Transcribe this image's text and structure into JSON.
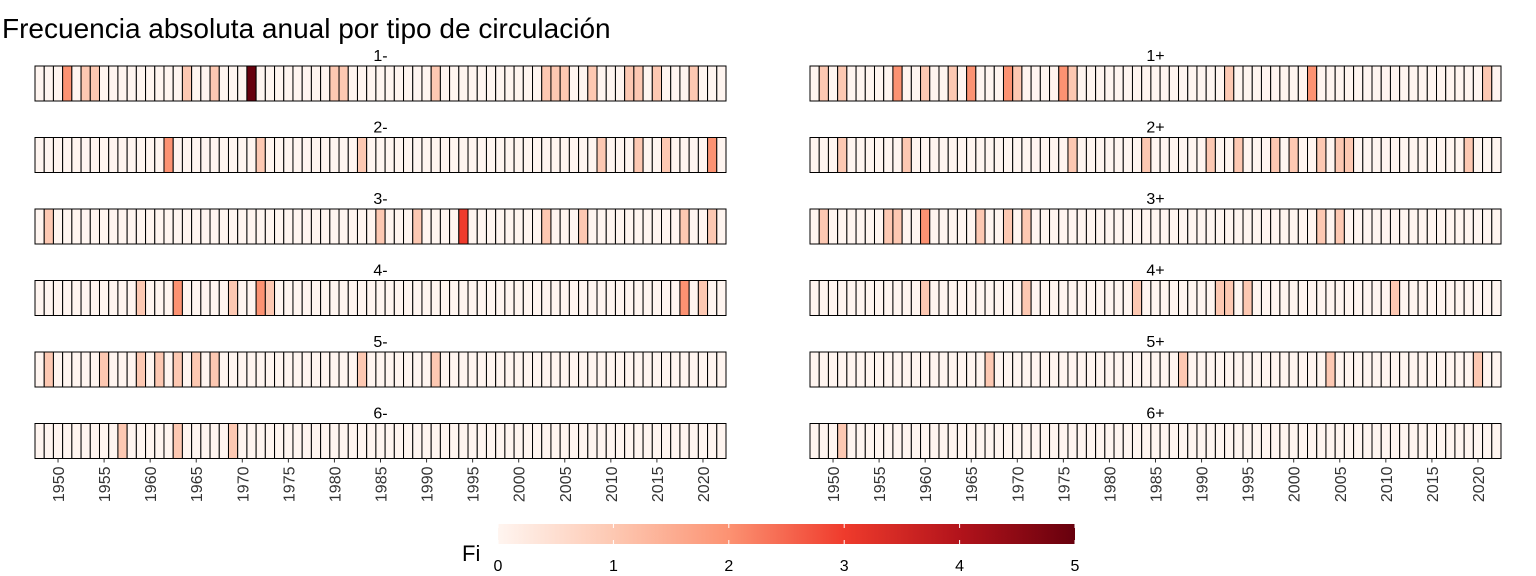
{
  "chart_data": {
    "type": "heatmap",
    "title": "Frecuencia absoluta anual por tipo de circulación",
    "years": [
      1948,
      1949,
      1950,
      1951,
      1952,
      1953,
      1954,
      1955,
      1956,
      1957,
      1958,
      1959,
      1960,
      1961,
      1962,
      1963,
      1964,
      1965,
      1966,
      1967,
      1968,
      1969,
      1970,
      1971,
      1972,
      1973,
      1974,
      1975,
      1976,
      1977,
      1978,
      1979,
      1980,
      1981,
      1982,
      1983,
      1984,
      1985,
      1986,
      1987,
      1988,
      1989,
      1990,
      1991,
      1992,
      1993,
      1994,
      1995,
      1996,
      1997,
      1998,
      1999,
      2000,
      2001,
      2002,
      2003,
      2004,
      2005,
      2006,
      2007,
      2008,
      2009,
      2010,
      2011,
      2012,
      2013,
      2014,
      2015,
      2016,
      2017,
      2018,
      2019,
      2020,
      2021,
      2022
    ],
    "x_ticks": [
      1950,
      1955,
      1960,
      1965,
      1970,
      1975,
      1980,
      1985,
      1990,
      1995,
      2000,
      2005,
      2010,
      2015,
      2020
    ],
    "panels": [
      {
        "label": "1-",
        "nonzero": {
          "1951": 2,
          "1953": 1,
          "1954": 1,
          "1964": 1,
          "1967": 1,
          "1971": 5,
          "1980": 1,
          "1981": 1,
          "1991": 1,
          "2003": 1,
          "2004": 1,
          "2005": 1,
          "2008": 1,
          "2012": 1,
          "2013": 1,
          "2015": 1,
          "2019": 1
        }
      },
      {
        "label": "1+",
        "nonzero": {
          "1949": 1,
          "1951": 1,
          "1957": 2,
          "1960": 1,
          "1963": 1,
          "1965": 2,
          "1969": 2,
          "1970": 1,
          "1975": 2,
          "1976": 1,
          "1993": 1,
          "2002": 2,
          "2021": 1
        }
      },
      {
        "label": "2-",
        "nonzero": {
          "1962": 2,
          "1972": 1,
          "1983": 1,
          "2009": 1,
          "2013": 1,
          "2016": 1,
          "2021": 2
        }
      },
      {
        "label": "2+",
        "nonzero": {
          "1951": 1,
          "1958": 1,
          "1976": 1,
          "1984": 1,
          "1991": 1,
          "1994": 1,
          "1998": 1,
          "2000": 1,
          "2003": 1,
          "2005": 1,
          "2006": 1,
          "2019": 1
        }
      },
      {
        "label": "3-",
        "nonzero": {
          "1949": 1,
          "1985": 1,
          "1989": 1,
          "1994": 3,
          "2003": 1,
          "2007": 1,
          "2018": 1,
          "2021": 1
        }
      },
      {
        "label": "3+",
        "nonzero": {
          "1949": 1,
          "1956": 1,
          "1957": 1,
          "1960": 2,
          "1966": 1,
          "1969": 1,
          "1971": 1,
          "2003": 1,
          "2005": 1
        }
      },
      {
        "label": "4-",
        "nonzero": {
          "1959": 1,
          "1963": 2,
          "1969": 1,
          "1972": 2,
          "1973": 1,
          "2018": 2,
          "2020": 1
        }
      },
      {
        "label": "4+",
        "nonzero": {
          "1960": 1,
          "1971": 1,
          "1983": 1,
          "1992": 1,
          "1993": 1,
          "1995": 1,
          "2011": 1
        }
      },
      {
        "label": "5-",
        "nonzero": {
          "1949": 1,
          "1955": 1,
          "1959": 1,
          "1961": 1,
          "1963": 1,
          "1965": 1,
          "1967": 1,
          "1983": 1,
          "1991": 1
        }
      },
      {
        "label": "5+",
        "nonzero": {
          "1967": 1,
          "1988": 1,
          "2004": 1,
          "2020": 1
        }
      },
      {
        "label": "6-",
        "nonzero": {
          "1957": 1,
          "1963": 1,
          "1969": 1
        }
      },
      {
        "label": "6+",
        "nonzero": {
          "1951": 1
        }
      }
    ],
    "legend": {
      "title": "Fi",
      "min": 0,
      "max": 5,
      "ticks": [
        0,
        1,
        2,
        3,
        4,
        5
      ]
    },
    "colors": {
      "low": "#fff5f0",
      "high": "#67000d",
      "stops": [
        "#fff5f0",
        "#fdc8b2",
        "#fc9272",
        "#ef3b2c",
        "#b2131b",
        "#67000d"
      ],
      "cell_border": "#000000"
    }
  }
}
